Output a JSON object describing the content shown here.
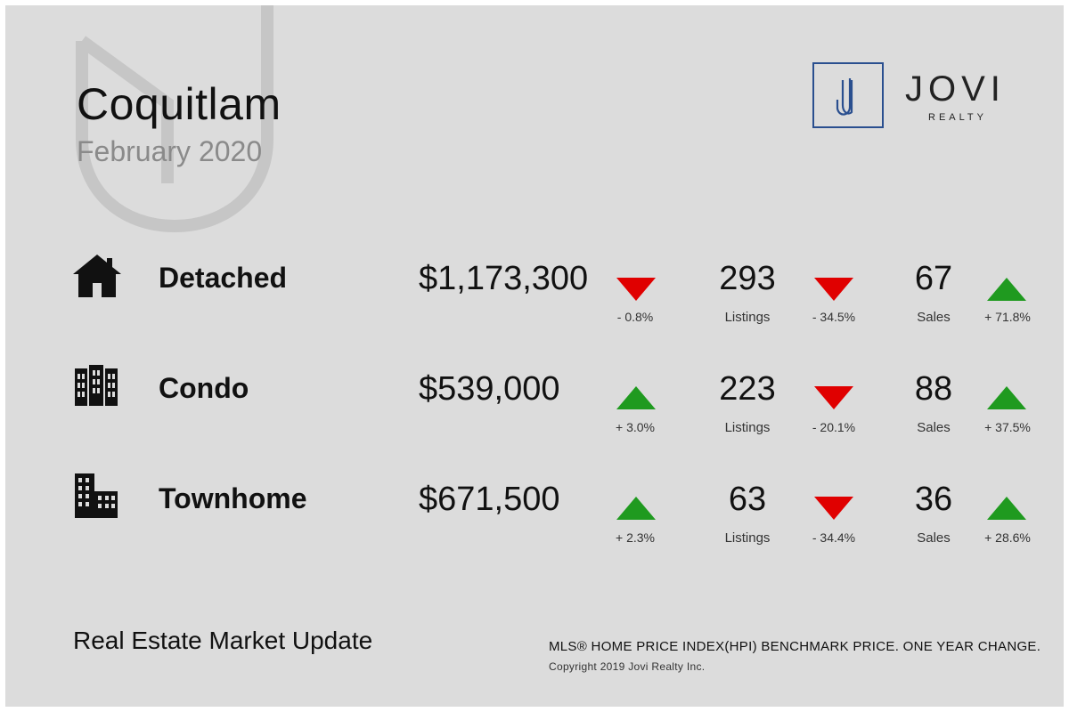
{
  "header": {
    "city": "Coquitlam",
    "period": "February 2020"
  },
  "brand": {
    "name": "JOVI",
    "sub": "REALTY",
    "colors": {
      "logo_border": "#2a4f8f",
      "background": "#dcdcdc",
      "up": "#1f9a1f",
      "down": "#e00000"
    }
  },
  "rows": [
    {
      "type": "Detached",
      "icon": "house-icon",
      "price": "$1,173,300",
      "price_change": "- 0.8%",
      "price_direction": "down",
      "listings": "293",
      "listings_label": "Listings",
      "listings_change": "- 34.5%",
      "listings_direction": "down",
      "sales": "67",
      "sales_label": "Sales",
      "sales_change": "+ 71.8%",
      "sales_direction": "up"
    },
    {
      "type": "Condo",
      "icon": "condo-building-icon",
      "price": "$539,000",
      "price_change": "+ 3.0%",
      "price_direction": "up",
      "listings": "223",
      "listings_label": "Listings",
      "listings_change": "- 20.1%",
      "listings_direction": "down",
      "sales": "88",
      "sales_label": "Sales",
      "sales_change": "+ 37.5%",
      "sales_direction": "up"
    },
    {
      "type": "Townhome",
      "icon": "townhome-building-icon",
      "price": "$671,500",
      "price_change": "+ 2.3%",
      "price_direction": "up",
      "listings": "63",
      "listings_label": "Listings",
      "listings_change": "- 34.4%",
      "listings_direction": "down",
      "sales": "36",
      "sales_label": "Sales",
      "sales_change": "+ 28.6%",
      "sales_direction": "up"
    }
  ],
  "footer": {
    "title": "Real Estate Market Update",
    "note": "MLS® HOME PRICE INDEX(HPI) BENCHMARK PRICE. ONE YEAR CHANGE.",
    "copyright": "Copyright 2019 Jovi Realty Inc."
  }
}
